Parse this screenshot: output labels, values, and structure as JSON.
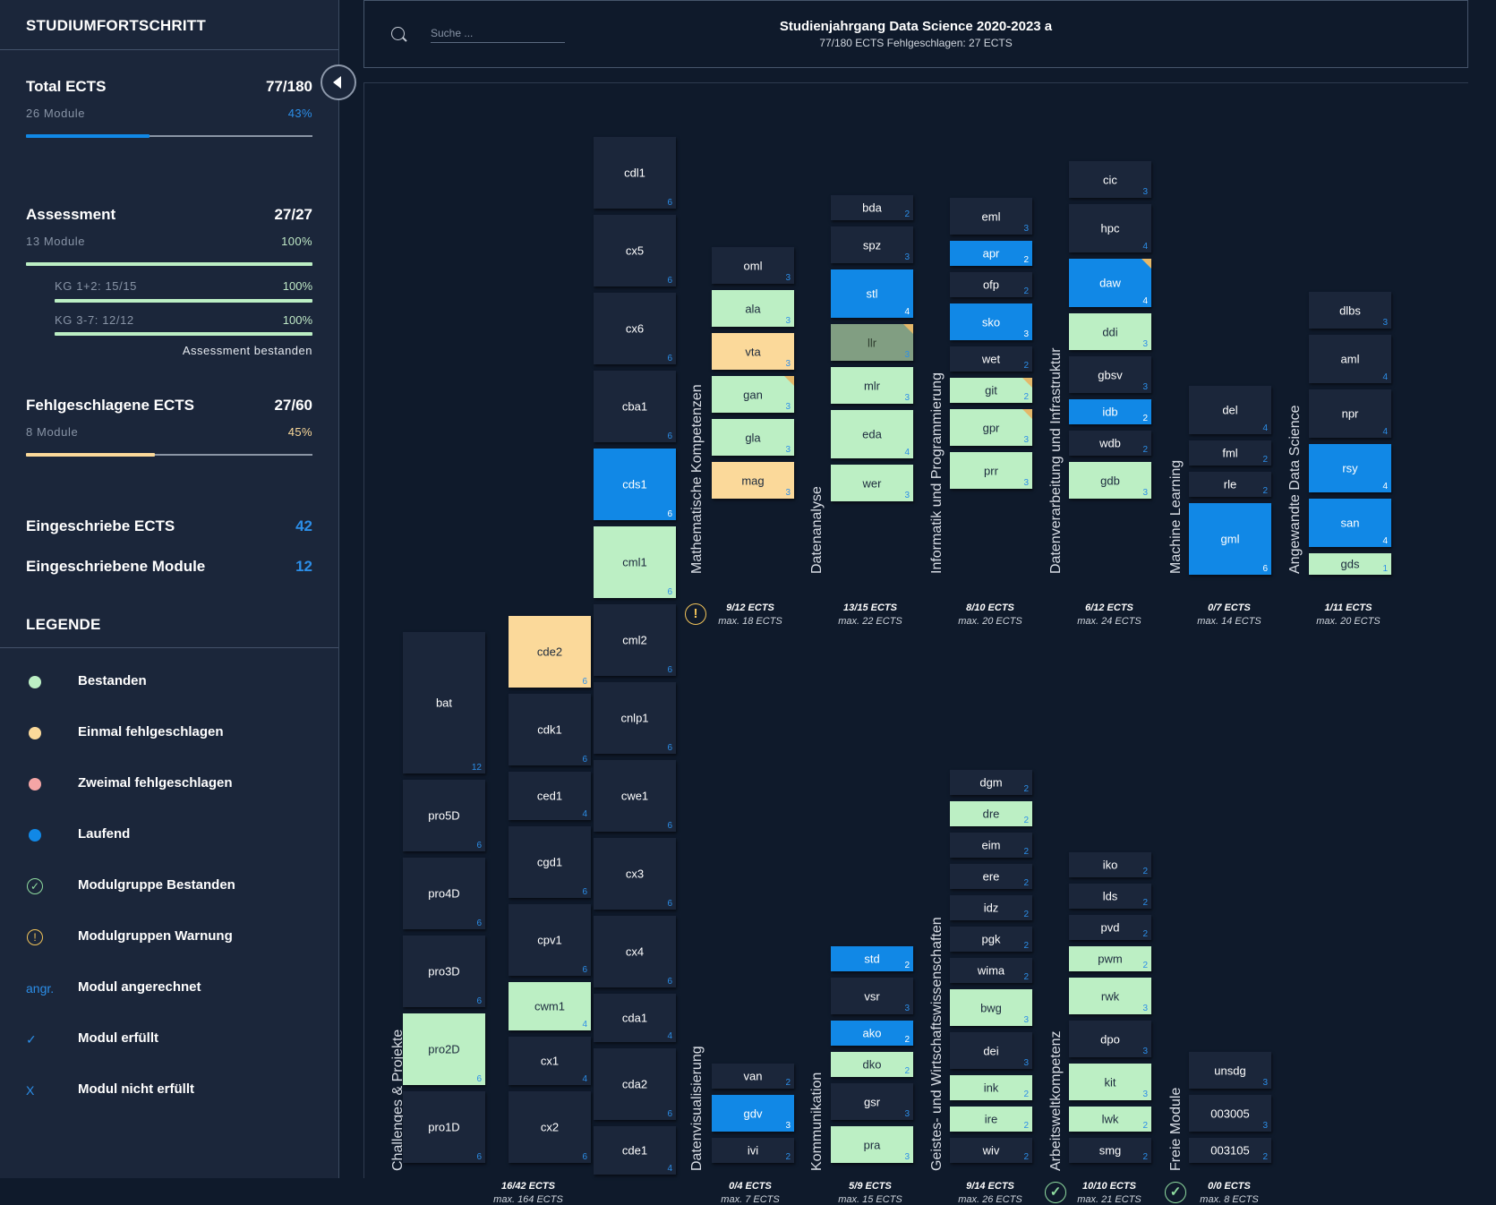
{
  "sidebar": {
    "title": "STUDIUMFORTSCHRITT",
    "total": {
      "label": "Total ECTS",
      "value": "77/180",
      "modules": "26 Module",
      "percent": "43%",
      "progress": 0.43
    },
    "assessment": {
      "label": "Assessment",
      "value": "27/27",
      "modules": "13 Module",
      "percent": "100%",
      "progress": 1.0,
      "sub": [
        {
          "label": "KG 1+2: 15/15",
          "percent": "100%",
          "progress": 1.0
        },
        {
          "label": "KG 3-7: 12/12",
          "percent": "100%",
          "progress": 1.0
        }
      ],
      "status": "Assessment bestanden"
    },
    "failed": {
      "label": "Fehlgeschlagene ECTS",
      "value": "27/60",
      "modules": "8 Module",
      "percent": "45%",
      "progress": 0.45
    },
    "enrolled_ects": {
      "label": "Eingeschriebe ECTS",
      "value": "42"
    },
    "enrolled_modules": {
      "label": "Eingeschriebene Module",
      "value": "12"
    },
    "legend_title": "LEGENDE",
    "legend": [
      {
        "label": "Bestanden",
        "kind": "dot",
        "color": "#bcefc4"
      },
      {
        "label": "Einmal fehlgeschlagen",
        "kind": "dot",
        "color": "#fbd99a"
      },
      {
        "label": "Zweimal fehlgeschlagen",
        "kind": "dot",
        "color": "#f4a5a5"
      },
      {
        "label": "Laufend",
        "kind": "dot",
        "color": "#1188e6"
      },
      {
        "label": "Modulgruppe Bestanden",
        "kind": "check-ring",
        "color": "#8fdca0",
        "glyph": "✓"
      },
      {
        "label": "Modulgruppen Warnung",
        "kind": "warn-ring",
        "color": "#f2c45a",
        "glyph": "!"
      },
      {
        "label": "Modul angerechnet",
        "kind": "text",
        "color": "#2c8ee8",
        "glyph": "angr."
      },
      {
        "label": "Modul erfüllt",
        "kind": "text",
        "color": "#2c8ee8",
        "glyph": "✓"
      },
      {
        "label": "Modul nicht erfüllt",
        "kind": "text",
        "color": "#2c8ee8",
        "glyph": "X"
      }
    ]
  },
  "header": {
    "search_placeholder": "Suche ...",
    "title": "Studienjahrgang Data Science 2020-2023 a",
    "subtitle": "77/180 ECTS    Fehlgeschlagen: 27 ECTS"
  },
  "colors": {
    "background": "#0f1a2b",
    "panel": "#1b263a",
    "passed": "#bcefc4",
    "failed_once": "#fbd99a",
    "running": "#1188e6",
    "credited": "#819e82",
    "accent": "#2c8ee8"
  },
  "groups": [
    {
      "name": "Challenges & Projekte",
      "ects": "16/42 ECTS",
      "max": "max. 164 ECTS",
      "icon": null,
      "cols": [
        [
          [
            "bat",
            12,
            "none"
          ],
          [
            "pro5D",
            6,
            "none"
          ],
          [
            "pro4D",
            6,
            "none"
          ],
          [
            "pro3D",
            6,
            "none"
          ],
          [
            "pro2D",
            6,
            "passed"
          ],
          [
            "pro1D",
            6,
            "none"
          ]
        ],
        [
          [
            "cde2",
            6,
            "failed1"
          ],
          [
            "cdk1",
            6,
            "none"
          ],
          [
            "ced1",
            4,
            "none"
          ],
          [
            "cgd1",
            6,
            "none"
          ],
          [
            "cpv1",
            6,
            "none"
          ],
          [
            "cwm1",
            4,
            "passed"
          ],
          [
            "cx1",
            4,
            "none"
          ],
          [
            "cx2",
            6,
            "none"
          ]
        ],
        [
          [
            "cdl1",
            6,
            "none"
          ],
          [
            "cx5",
            6,
            "none"
          ],
          [
            "cx6",
            6,
            "none"
          ],
          [
            "cba1",
            6,
            "none"
          ],
          [
            "cds1",
            6,
            "running"
          ],
          [
            "cml1",
            6,
            "passed"
          ],
          [
            "cml2",
            6,
            "none"
          ],
          [
            "cnlp1",
            6,
            "none"
          ],
          [
            "cwe1",
            6,
            "none"
          ],
          [
            "cx3",
            6,
            "none"
          ],
          [
            "cx4",
            6,
            "none"
          ],
          [
            "cda1",
            4,
            "none"
          ],
          [
            "cda2",
            6,
            "none"
          ],
          [
            "cde1",
            4,
            "none"
          ]
        ]
      ]
    },
    {
      "name": "Mathematische Kompetenzen",
      "ects": "9/12 ECTS",
      "max": "max. 18 ECTS",
      "icon": "warn",
      "cols": [
        [
          [
            "oml",
            3,
            "none"
          ],
          [
            "ala",
            3,
            "passed"
          ],
          [
            "vta",
            3,
            "failed1"
          ],
          [
            "gan",
            3,
            "passed",
            "flag"
          ],
          [
            "gla",
            3,
            "passed"
          ],
          [
            "mag",
            3,
            "failed1"
          ]
        ]
      ]
    },
    {
      "name": "Datenanalyse",
      "ects": "13/15 ECTS",
      "max": "max. 22 ECTS",
      "icon": null,
      "cols": [
        [
          [
            "bda",
            2,
            "none"
          ],
          [
            "spz",
            3,
            "none"
          ],
          [
            "stl",
            4,
            "running"
          ],
          [
            "llr",
            3,
            "credited",
            "flag"
          ],
          [
            "mlr",
            3,
            "passed"
          ],
          [
            "eda",
            4,
            "passed"
          ],
          [
            "wer",
            3,
            "passed"
          ]
        ]
      ]
    },
    {
      "name": "Informatik und Programmierung",
      "ects": "8/10 ECTS",
      "max": "max. 20 ECTS",
      "icon": null,
      "cols": [
        [
          [
            "eml",
            3,
            "none"
          ],
          [
            "apr",
            2,
            "running"
          ],
          [
            "ofp",
            2,
            "none"
          ],
          [
            "sko",
            3,
            "running"
          ],
          [
            "wet",
            2,
            "none"
          ],
          [
            "git",
            2,
            "passed",
            "flag"
          ],
          [
            "gpr",
            3,
            "passed",
            "flag"
          ],
          [
            "prr",
            3,
            "passed"
          ]
        ]
      ]
    },
    {
      "name": "Datenverarbeitung und Infrastruktur",
      "ects": "6/12 ECTS",
      "max": "max. 24 ECTS",
      "icon": null,
      "cols": [
        [
          [
            "cic",
            3,
            "none"
          ],
          [
            "hpc",
            4,
            "none"
          ],
          [
            "daw",
            4,
            "running",
            "flag"
          ],
          [
            "ddi",
            3,
            "passed"
          ],
          [
            "gbsv",
            3,
            "none"
          ],
          [
            "idb",
            2,
            "running"
          ],
          [
            "wdb",
            2,
            "none"
          ],
          [
            "gdb",
            3,
            "passed"
          ]
        ]
      ]
    },
    {
      "name": "Machine Learning",
      "ects": "0/7 ECTS",
      "max": "max. 14 ECTS",
      "icon": null,
      "cols": [
        [
          [
            "del",
            4,
            "none"
          ],
          [
            "fml",
            2,
            "none"
          ],
          [
            "rle",
            2,
            "none"
          ],
          [
            "gml",
            6,
            "running"
          ]
        ]
      ]
    },
    {
      "name": "Angewandte Data Science",
      "ects": "1/11 ECTS",
      "max": "max. 20 ECTS",
      "icon": null,
      "cols": [
        [
          [
            "dlbs",
            3,
            "none"
          ],
          [
            "aml",
            4,
            "none"
          ],
          [
            "npr",
            4,
            "none"
          ],
          [
            "rsy",
            4,
            "running"
          ],
          [
            "san",
            4,
            "running"
          ],
          [
            "gds",
            1,
            "passed"
          ]
        ]
      ]
    },
    {
      "name": "Datenvisualisierung",
      "ects": "0/4 ECTS",
      "max": "max. 7 ECTS",
      "icon": null,
      "cols": [
        [
          [
            "van",
            2,
            "none"
          ],
          [
            "gdv",
            3,
            "running"
          ],
          [
            "ivi",
            2,
            "none"
          ]
        ]
      ]
    },
    {
      "name": "Kommunikation",
      "ects": "5/9 ECTS",
      "max": "max. 15 ECTS",
      "icon": null,
      "cols": [
        [
          [
            "std",
            2,
            "running"
          ],
          [
            "vsr",
            3,
            "none"
          ],
          [
            "ako",
            2,
            "running"
          ],
          [
            "dko",
            2,
            "passed"
          ],
          [
            "gsr",
            3,
            "none"
          ],
          [
            "pra",
            3,
            "passed"
          ]
        ]
      ]
    },
    {
      "name": "Geistes- und Wirtschaftswissenschaften",
      "ects": "9/14 ECTS",
      "max": "max. 26 ECTS",
      "icon": null,
      "cols": [
        [
          [
            "dgm",
            2,
            "none"
          ],
          [
            "dre",
            2,
            "passed"
          ],
          [
            "eim",
            2,
            "none"
          ],
          [
            "ere",
            2,
            "none"
          ],
          [
            "idz",
            2,
            "none"
          ],
          [
            "pgk",
            2,
            "none"
          ],
          [
            "wima",
            2,
            "none"
          ],
          [
            "bwg",
            3,
            "passed"
          ],
          [
            "dei",
            3,
            "none"
          ],
          [
            "ink",
            2,
            "passed"
          ],
          [
            "ire",
            2,
            "passed"
          ],
          [
            "wiv",
            2,
            "none"
          ]
        ]
      ]
    },
    {
      "name": "Arbeitsweltkompetenz",
      "ects": "10/10 ECTS",
      "max": "max. 21 ECTS",
      "icon": "check",
      "cols": [
        [
          [
            "iko",
            2,
            "none"
          ],
          [
            "lds",
            2,
            "none"
          ],
          [
            "pvd",
            2,
            "none"
          ],
          [
            "pwm",
            2,
            "passed"
          ],
          [
            "rwk",
            3,
            "passed"
          ],
          [
            "dpo",
            3,
            "none"
          ],
          [
            "kit",
            3,
            "passed"
          ],
          [
            "lwk",
            2,
            "passed"
          ],
          [
            "smg",
            2,
            "none"
          ]
        ]
      ]
    },
    {
      "name": "Freie Module",
      "ects": "0/0 ECTS",
      "max": "max. 8 ECTS",
      "icon": "check",
      "cols": [
        [
          [
            "unsdg",
            3,
            "none"
          ],
          [
            "003005",
            3,
            "none"
          ],
          [
            "003105",
            2,
            "none"
          ]
        ]
      ]
    }
  ]
}
